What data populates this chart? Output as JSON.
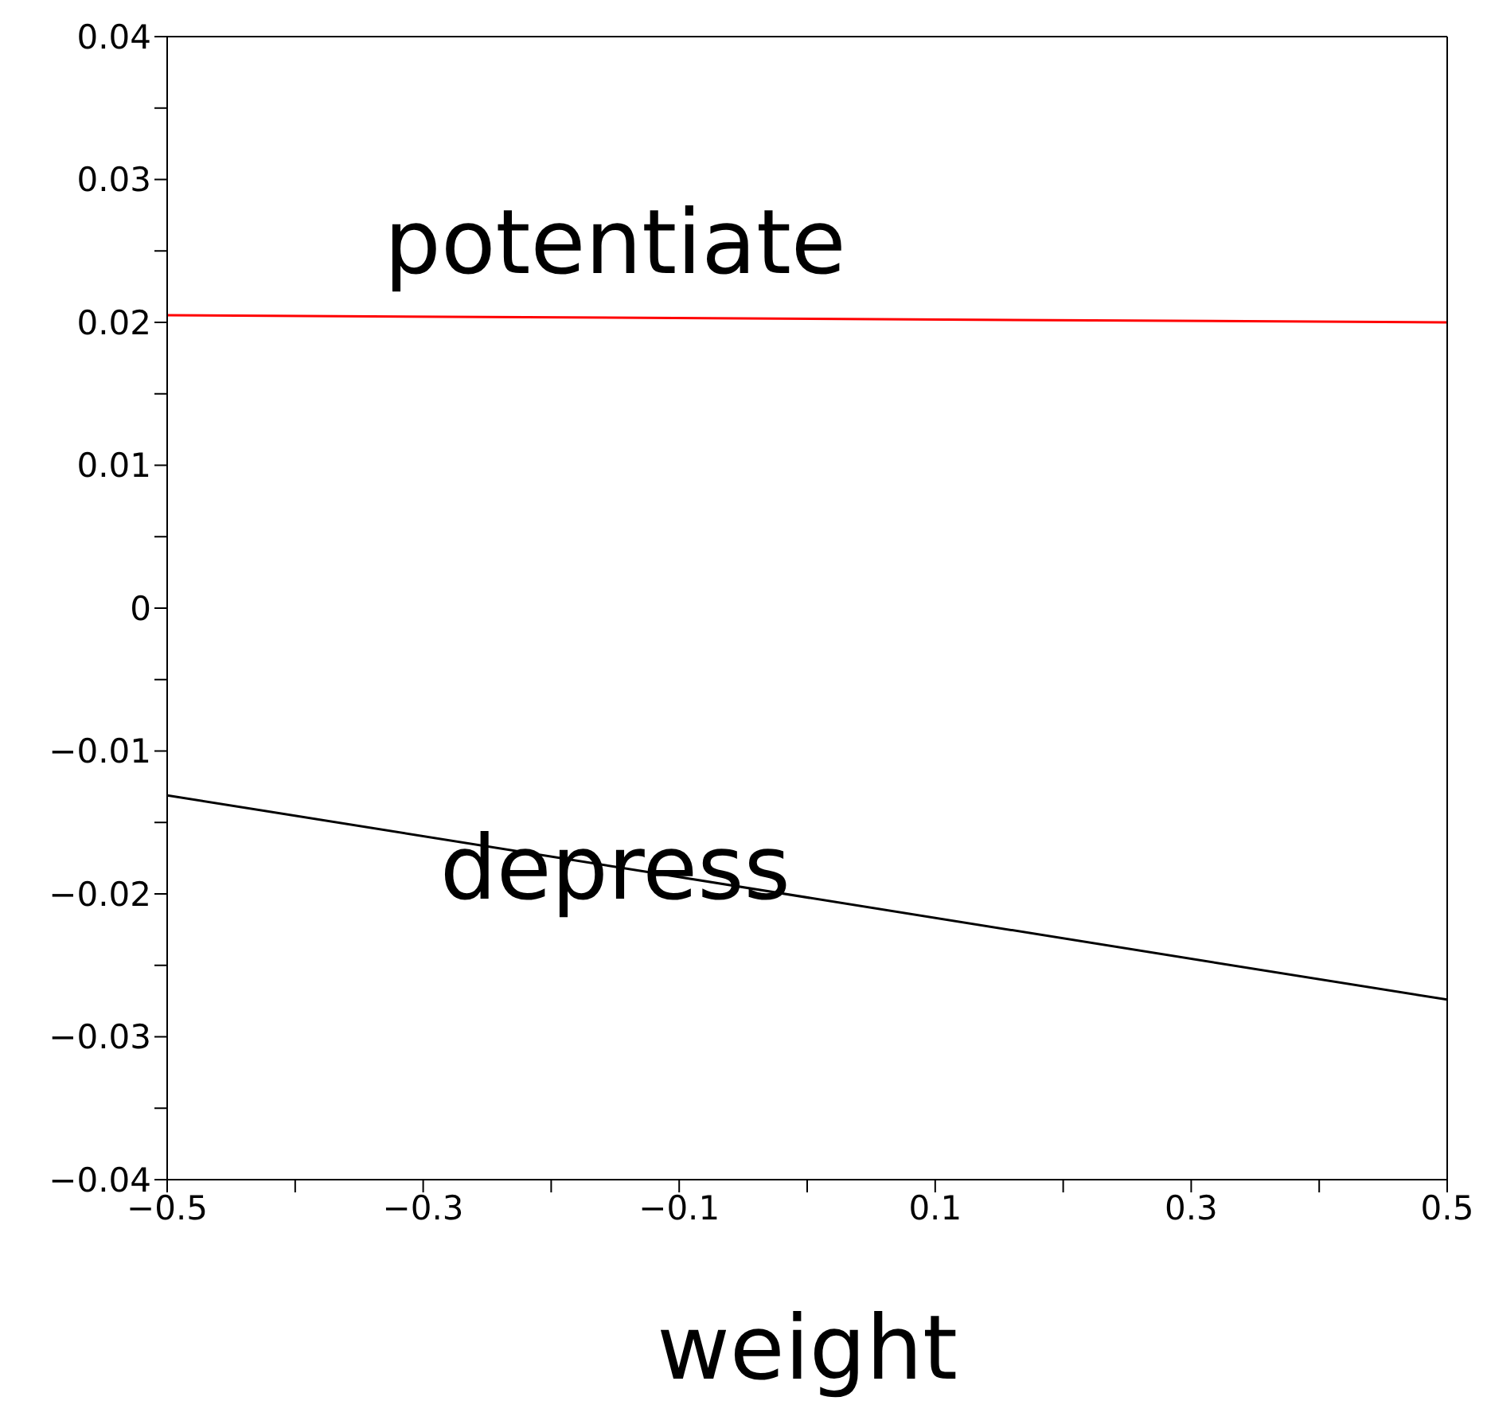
{
  "chart_data": {
    "type": "line",
    "xlabel": "weight",
    "x": [
      -0.5,
      0.5
    ],
    "series": [
      {
        "name": "potentiate",
        "color": "#ff0000",
        "values": [
          0.0205,
          0.02
        ]
      },
      {
        "name": "depress",
        "color": "#000000",
        "values": [
          -0.0131,
          -0.0274
        ]
      }
    ],
    "xlim": [
      -0.5,
      0.5
    ],
    "xticks": [
      {
        "value": -0.5,
        "label": "−0.5"
      },
      {
        "value": -0.4,
        "label": null
      },
      {
        "value": -0.3,
        "label": "−0.3"
      },
      {
        "value": -0.2,
        "label": null
      },
      {
        "value": -0.1,
        "label": "−0.1"
      },
      {
        "value": 0,
        "label": null
      },
      0.1,
      {
        "value": 0.2,
        "label": null
      },
      0.3,
      {
        "value": 0.4,
        "label": null
      },
      0.5
    ],
    "ylim": [
      -0.04,
      0.04
    ],
    "yticks": [
      {
        "value": -0.04,
        "label": "−0.04"
      },
      {
        "value": -0.035,
        "label": null
      },
      {
        "value": -0.03,
        "label": "−0.03"
      },
      {
        "value": -0.025,
        "label": null
      },
      {
        "value": -0.02,
        "label": "−0.02"
      },
      {
        "value": -0.015,
        "label": null
      },
      {
        "value": -0.01,
        "label": "−0.01"
      },
      {
        "value": -0.005,
        "label": null
      },
      0,
      {
        "value": 0.005,
        "label": null
      },
      0.01,
      {
        "value": 0.015,
        "label": null
      },
      0.02,
      {
        "value": 0.025,
        "label": null
      },
      0.03,
      {
        "value": 0.035,
        "label": null
      },
      0.04
    ],
    "legend": false,
    "marker": "none",
    "line_style": "solid"
  }
}
